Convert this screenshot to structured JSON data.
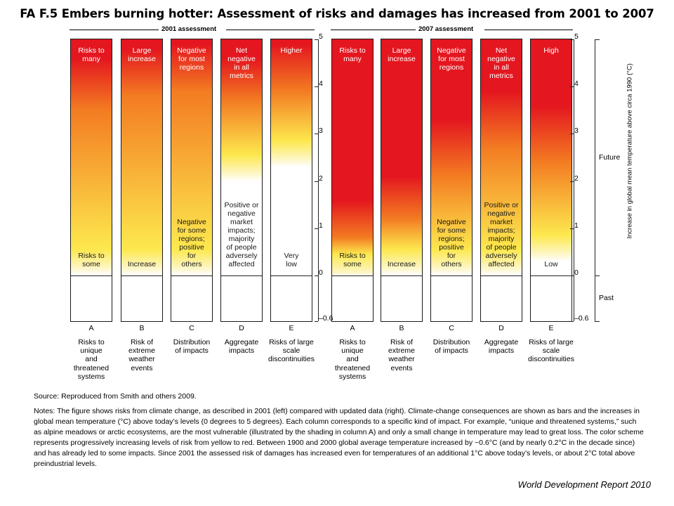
{
  "title": "FA F.5 Embers burning hotter: Assessment of risks and damages has increased from 2001 to 2007",
  "assessments": [
    "2001 assessment",
    "2007 assessment"
  ],
  "chart_data": {
    "type": "heatmap",
    "y_axis": {
      "label": "Increase in global mean temperature above circa 1990 (°C)",
      "ticks": [
        "5",
        "4",
        "3",
        "2",
        "1",
        "0",
        "–0.6"
      ],
      "ylim": [
        -0.6,
        5
      ]
    },
    "periods": [
      {
        "label": "Future",
        "range": [
          0,
          5
        ]
      },
      {
        "label": "Past",
        "range": [
          -0.6,
          0
        ]
      }
    ],
    "colors": {
      "high": "#e4161f",
      "mid": "#f37c22",
      "low": "#fde84e",
      "none": "#ffffff"
    },
    "panels": [
      {
        "name": "2001 assessment",
        "columns": [
          {
            "letter": "A",
            "caption": "Risks to\nunique\nand\nthreatened\nsystems",
            "top_label": "Risks to\nmany",
            "bottom_label": "Risks to\nsome",
            "gradient_degC": {
              "yellow_start": 0,
              "orange": 3.5,
              "red": 4.6
            }
          },
          {
            "letter": "B",
            "caption": "Risk of\nextreme\nweather\nevents",
            "top_label": "Large\nincrease",
            "bottom_label": "Increase",
            "gradient_degC": {
              "yellow_start": 0,
              "orange": 3.8,
              "red": 4.8
            }
          },
          {
            "letter": "C",
            "caption": "Distribution\nof impacts",
            "top_label": "Negative\nfor most\nregions",
            "bottom_label": "Negative\nfor some\nregions;\npositive\nfor\nothers",
            "gradient_degC": {
              "yellow_start": 0,
              "orange": 3.9,
              "red": 4.9
            }
          },
          {
            "letter": "D",
            "caption": "Aggregate\nimpacts",
            "top_label": "Net\nnegative\nin all\nmetrics",
            "bottom_label": "Positive or\nnegative\nmarket\nimpacts;\nmajority\nof people\nadversely\naffected",
            "gradient_degC": {
              "yellow_start": 2.0,
              "orange": 3.7,
              "red": 4.6
            }
          },
          {
            "letter": "E",
            "caption": "Risks of large\nscale\ndiscontinuities",
            "top_label": "Higher",
            "bottom_label": "Very\nlow",
            "gradient_degC": {
              "yellow_start": 2.3,
              "orange": 3.9,
              "red": 4.9
            }
          }
        ]
      },
      {
        "name": "2007 assessment",
        "columns": [
          {
            "letter": "A",
            "caption": "Risks to\nunique\nand\nthreatened\nsystems",
            "top_label": "Risks to\nmany",
            "bottom_label": "Risks to\nsome",
            "gradient_degC": {
              "yellow_start": -0.1,
              "orange": 0.8,
              "red": 1.6
            }
          },
          {
            "letter": "B",
            "caption": "Risk of\nextreme\nweather\nevents",
            "top_label": "Large\nincrease",
            "bottom_label": "Increase",
            "gradient_degC": {
              "yellow_start": 0,
              "orange": 1.2,
              "red": 2.1
            }
          },
          {
            "letter": "C",
            "caption": "Distribution\nof impacts",
            "top_label": "Negative\nfor most\nregions",
            "bottom_label": "Negative\nfor some\nregions;\npositive\nfor\nothers",
            "gradient_degC": {
              "yellow_start": 0,
              "orange": 2.1,
              "red": 3.3
            }
          },
          {
            "letter": "D",
            "caption": "Aggregate\nimpacts",
            "top_label": "Net\nnegative\nin all\nmetrics",
            "bottom_label": "Positive or\nnegative\nmarket\nimpacts;\nmajority\nof people\nadversely\naffected",
            "gradient_degC": {
              "yellow_start": 0,
              "orange": 2.7,
              "red": 3.9
            }
          },
          {
            "letter": "E",
            "caption": "Risks of large\nscale\ndiscontinuities",
            "top_label": "High",
            "bottom_label": "Low",
            "gradient_degC": {
              "yellow_start": 0.3,
              "orange": 2.4,
              "red": 3.6
            }
          }
        ]
      }
    ]
  },
  "source": "Source: Reproduced from Smith and others 2009.",
  "notes": "Notes: The figure shows risks from climate change, as described in 2001 (left) compared with updated data (right). Climate-change consequences are shown as bars and the increases in global mean temperature (°C) above today’s levels (0 degrees to 5 degrees). Each column corresponds to a specific kind of impact. For example, “unique and threatened systems,” such as alpine meadows or arctic ecosystems, are the most vulnerable (illustrated by the shading in column A) and only a small change in temperature may lead to great loss. The color scheme represents progressively increasing levels of risk from yellow to red. Between 1900 and 2000 global average temperature increased by ~0.6°C (and by nearly 0.2°C in the decade since) and has already led to some impacts. Since 2001 the assessed risk of damages has increased even for temperatures of an additional 1°C above today’s levels, or about 2°C total above preindustrial levels.",
  "credit": "World Development Report 2010"
}
